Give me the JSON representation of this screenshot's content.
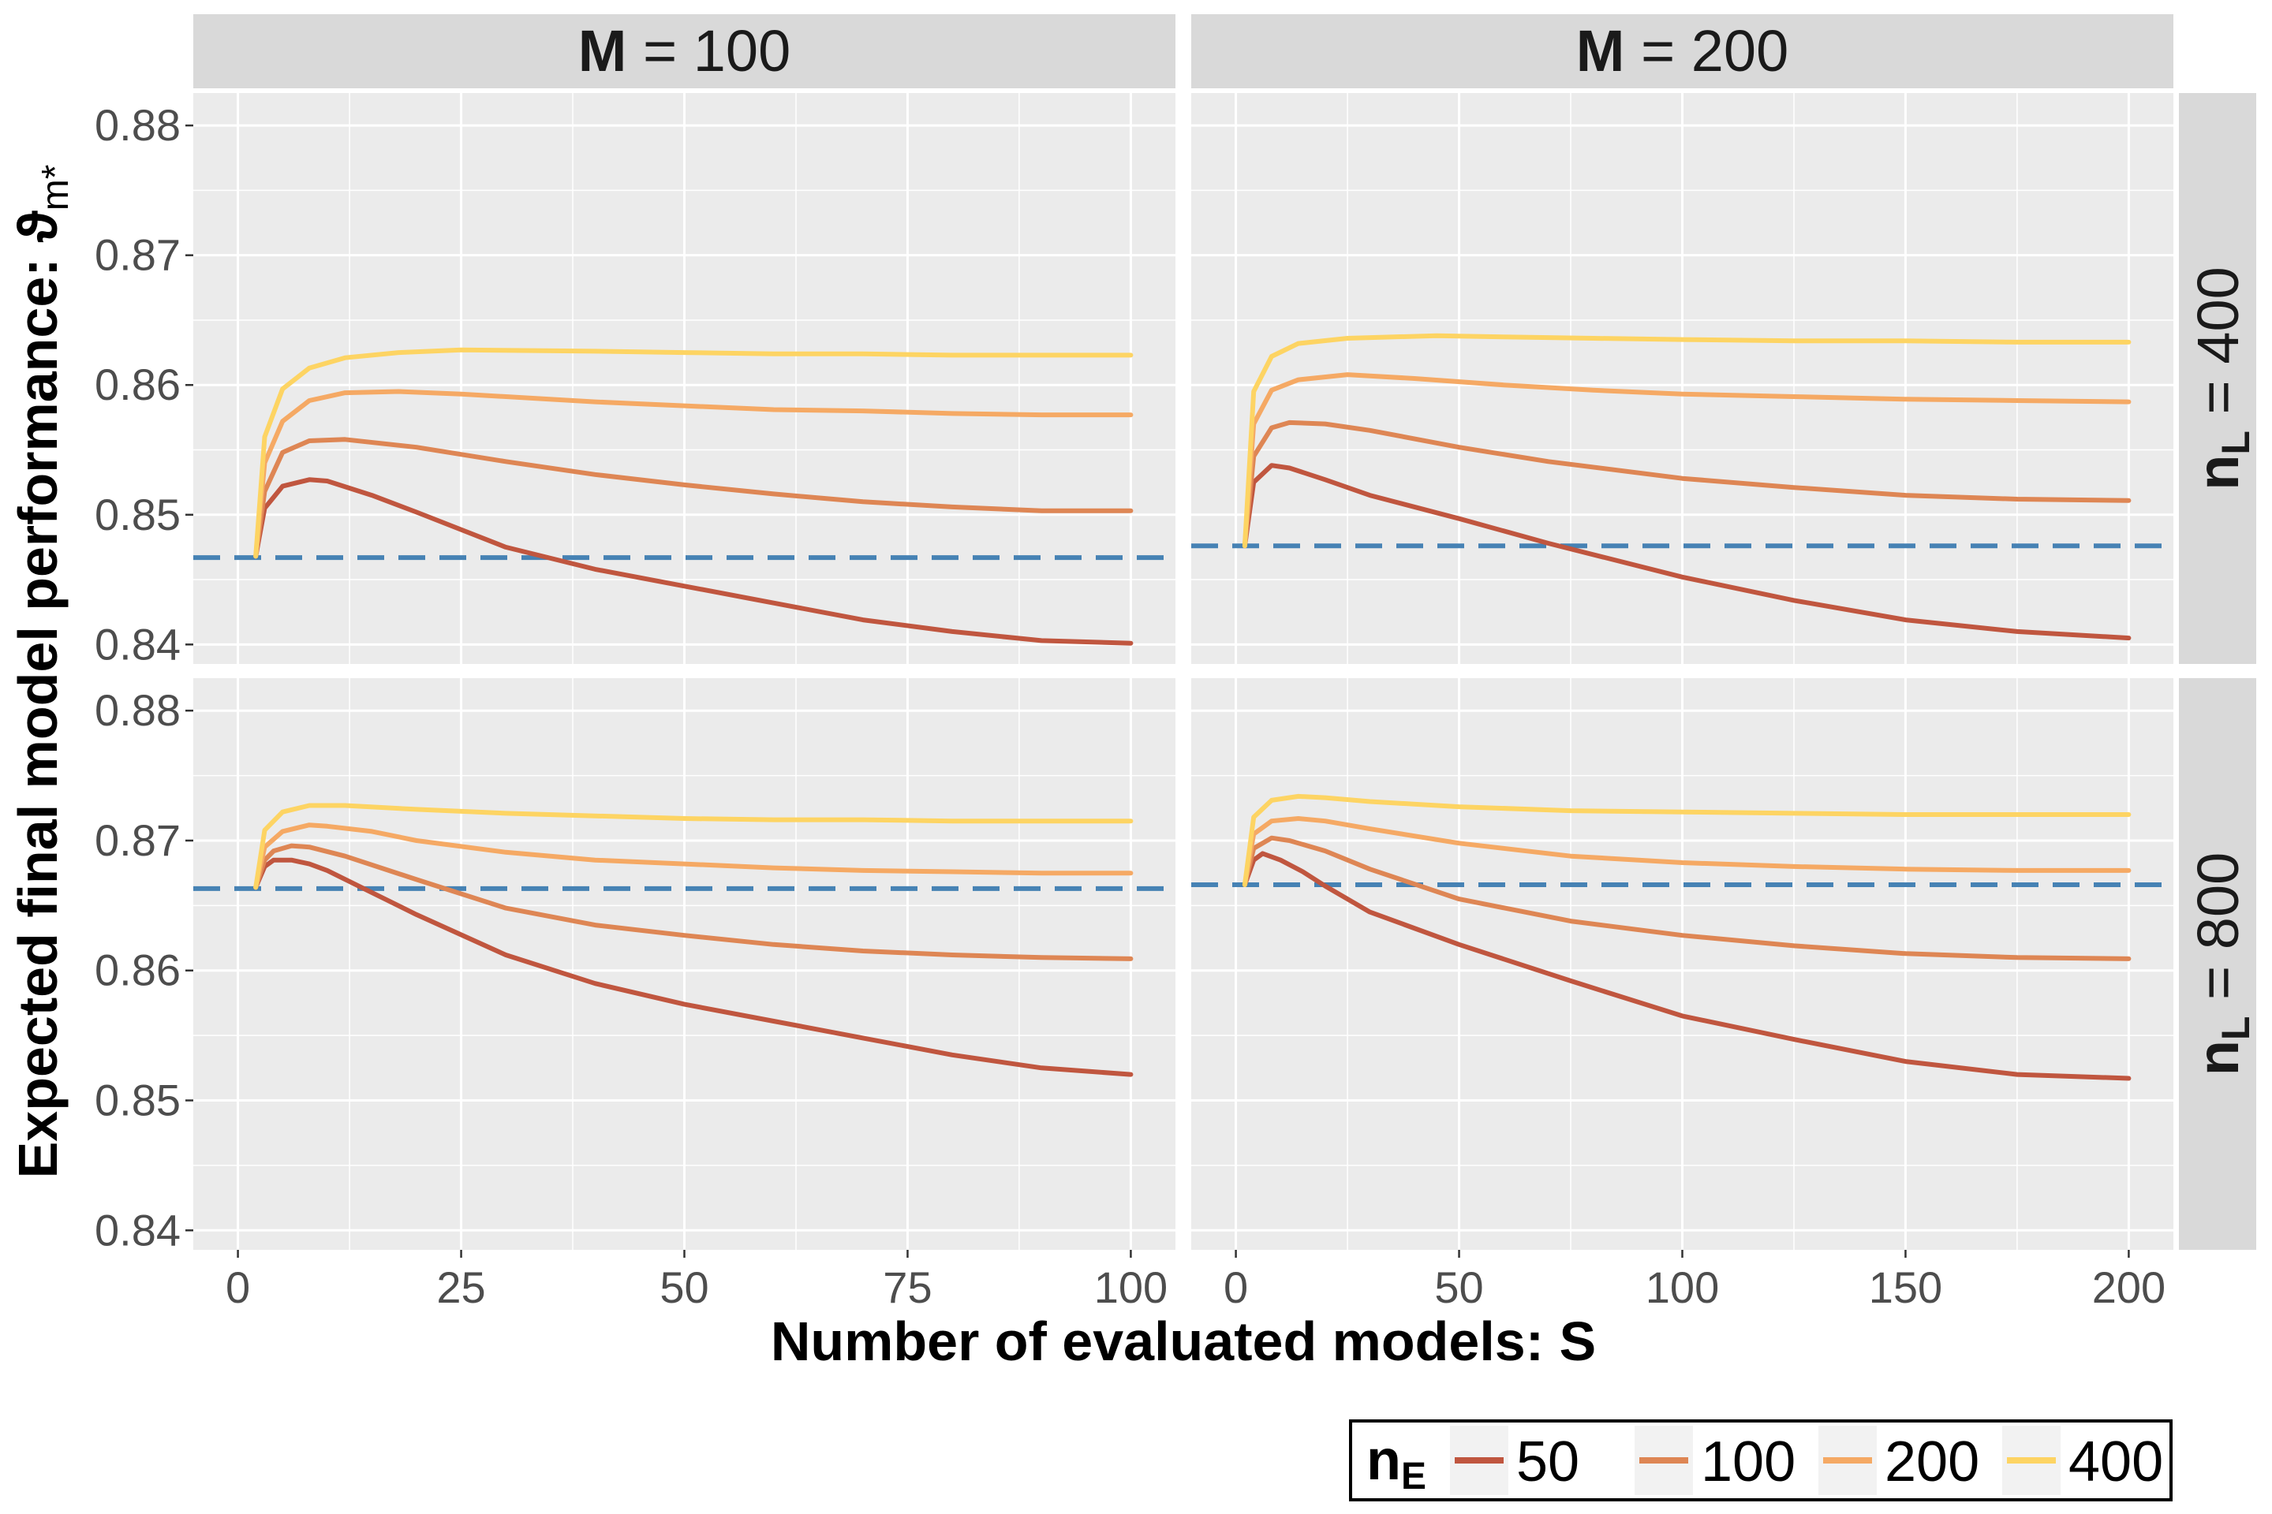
{
  "chart_data": {
    "type": "line",
    "xlabel": "Number of evaluated models: S",
    "ylabel": "Expected final model performance: ϑ",
    "ylabel_sub": "m*",
    "ylim": [
      0.8385,
      0.8825
    ],
    "yticks": [
      0.84,
      0.85,
      0.86,
      0.87,
      0.88
    ],
    "ytick_labels": [
      "0.84",
      "0.85",
      "0.86",
      "0.87",
      "0.88"
    ],
    "grid": true,
    "columns": [
      {
        "label_bold": "M",
        "label_rest": " = 100",
        "xlim": [
          -5,
          105
        ],
        "xticks": [
          0,
          25,
          50,
          75,
          100
        ],
        "xtick_labels": [
          "0",
          "25",
          "50",
          "75",
          "100"
        ]
      },
      {
        "label_bold": "M",
        "label_rest": " = 200",
        "xlim": [
          -10,
          210
        ],
        "xticks": [
          0,
          50,
          100,
          150,
          200
        ],
        "xtick_labels": [
          "0",
          "50",
          "100",
          "150",
          "200"
        ]
      }
    ],
    "rows": [
      {
        "label_bold": "n",
        "label_sub": "L",
        "label_rest": " = 400"
      },
      {
        "label_bold": "n",
        "label_sub": "L",
        "label_rest": " = 800"
      }
    ],
    "legend": {
      "title": "n",
      "title_sub": "E",
      "position": "bottom-right",
      "entries": [
        "50",
        "100",
        "200",
        "400"
      ]
    },
    "series_colors": [
      "#c0563f",
      "#de8654",
      "#f5a964",
      "#fdd463"
    ],
    "reference_color": "#4682b4",
    "panels": [
      {
        "col": 0,
        "row": 0,
        "reference": 0.8467,
        "series": [
          {
            "name": "50",
            "x": [
              2,
              3,
              5,
              8,
              10,
              15,
              20,
              30,
              40,
              50,
              60,
              70,
              80,
              90,
              100
            ],
            "y": [
              0.8468,
              0.8505,
              0.8522,
              0.8527,
              0.8526,
              0.8515,
              0.8502,
              0.8475,
              0.8458,
              0.8445,
              0.8432,
              0.8419,
              0.841,
              0.8403,
              0.8401
            ]
          },
          {
            "name": "100",
            "x": [
              2,
              3,
              5,
              8,
              12,
              20,
              30,
              40,
              50,
              60,
              70,
              80,
              90,
              100
            ],
            "y": [
              0.8468,
              0.8518,
              0.8548,
              0.8557,
              0.8558,
              0.8552,
              0.8541,
              0.8531,
              0.8523,
              0.8516,
              0.851,
              0.8506,
              0.8503,
              0.8503
            ]
          },
          {
            "name": "200",
            "x": [
              2,
              3,
              5,
              8,
              12,
              18,
              25,
              40,
              50,
              60,
              70,
              80,
              90,
              100
            ],
            "y": [
              0.8468,
              0.854,
              0.8572,
              0.8588,
              0.8594,
              0.8595,
              0.8593,
              0.8587,
              0.8584,
              0.8581,
              0.858,
              0.8578,
              0.8577,
              0.8577
            ]
          },
          {
            "name": "400",
            "x": [
              2,
              3,
              5,
              8,
              12,
              18,
              25,
              40,
              50,
              60,
              70,
              80,
              90,
              100
            ],
            "y": [
              0.8468,
              0.856,
              0.8597,
              0.8613,
              0.8621,
              0.8625,
              0.8627,
              0.8626,
              0.8625,
              0.8624,
              0.8624,
              0.8623,
              0.8623,
              0.8623
            ]
          }
        ]
      },
      {
        "col": 1,
        "row": 0,
        "reference": 0.8476,
        "series": [
          {
            "name": "50",
            "x": [
              2,
              4,
              8,
              12,
              20,
              30,
              50,
              70,
              100,
              125,
              150,
              175,
              200
            ],
            "y": [
              0.8476,
              0.8525,
              0.8538,
              0.8536,
              0.8527,
              0.8515,
              0.8497,
              0.8478,
              0.8452,
              0.8434,
              0.8419,
              0.841,
              0.8405
            ]
          },
          {
            "name": "100",
            "x": [
              2,
              4,
              8,
              12,
              20,
              30,
              50,
              70,
              100,
              125,
              150,
              175,
              200
            ],
            "y": [
              0.8476,
              0.8545,
              0.8567,
              0.8571,
              0.857,
              0.8565,
              0.8552,
              0.8541,
              0.8528,
              0.8521,
              0.8515,
              0.8512,
              0.8511
            ]
          },
          {
            "name": "200",
            "x": [
              2,
              4,
              8,
              14,
              25,
              40,
              60,
              80,
              100,
              125,
              150,
              175,
              200
            ],
            "y": [
              0.8476,
              0.857,
              0.8596,
              0.8604,
              0.8608,
              0.8605,
              0.86,
              0.8596,
              0.8593,
              0.8591,
              0.8589,
              0.8588,
              0.8587
            ]
          },
          {
            "name": "400",
            "x": [
              2,
              4,
              8,
              14,
              25,
              45,
              60,
              80,
              100,
              125,
              150,
              175,
              200
            ],
            "y": [
              0.8476,
              0.8595,
              0.8622,
              0.8632,
              0.8636,
              0.8638,
              0.8637,
              0.8636,
              0.8635,
              0.8634,
              0.8634,
              0.8633,
              0.8633
            ]
          }
        ]
      },
      {
        "col": 0,
        "row": 1,
        "reference": 0.8663,
        "series": [
          {
            "name": "50",
            "x": [
              2,
              3,
              4,
              6,
              8,
              10,
              15,
              20,
              30,
              40,
              50,
              60,
              70,
              80,
              90,
              100
            ],
            "y": [
              0.8664,
              0.868,
              0.8685,
              0.8685,
              0.8682,
              0.8677,
              0.866,
              0.8643,
              0.8612,
              0.859,
              0.8574,
              0.8561,
              0.8548,
              0.8535,
              0.8525,
              0.852
            ]
          },
          {
            "name": "100",
            "x": [
              2,
              3,
              4,
              6,
              8,
              12,
              20,
              30,
              40,
              50,
              60,
              70,
              80,
              90,
              100
            ],
            "y": [
              0.8664,
              0.8685,
              0.8692,
              0.8696,
              0.8695,
              0.8688,
              0.867,
              0.8648,
              0.8635,
              0.8627,
              0.862,
              0.8615,
              0.8612,
              0.861,
              0.8609
            ]
          },
          {
            "name": "200",
            "x": [
              2,
              3,
              5,
              8,
              10,
              15,
              20,
              30,
              40,
              50,
              60,
              70,
              80,
              90,
              100
            ],
            "y": [
              0.8664,
              0.8695,
              0.8707,
              0.8712,
              0.8711,
              0.8707,
              0.87,
              0.8691,
              0.8685,
              0.8682,
              0.8679,
              0.8677,
              0.8676,
              0.8675,
              0.8675
            ]
          },
          {
            "name": "400",
            "x": [
              2,
              3,
              5,
              8,
              12,
              20,
              30,
              40,
              50,
              60,
              70,
              80,
              90,
              100
            ],
            "y": [
              0.8664,
              0.8708,
              0.8722,
              0.8727,
              0.8727,
              0.8724,
              0.8721,
              0.8719,
              0.8717,
              0.8716,
              0.8716,
              0.8715,
              0.8715,
              0.8715
            ]
          }
        ]
      },
      {
        "col": 1,
        "row": 1,
        "reference": 0.8666,
        "series": [
          {
            "name": "50",
            "x": [
              2,
              4,
              6,
              10,
              15,
              20,
              30,
              50,
              75,
              100,
              125,
              150,
              175,
              200
            ],
            "y": [
              0.8666,
              0.8685,
              0.869,
              0.8685,
              0.8676,
              0.8665,
              0.8645,
              0.862,
              0.8592,
              0.8565,
              0.8547,
              0.853,
              0.852,
              0.8517
            ]
          },
          {
            "name": "100",
            "x": [
              2,
              4,
              8,
              12,
              20,
              30,
              50,
              75,
              100,
              125,
              150,
              175,
              200
            ],
            "y": [
              0.8666,
              0.8694,
              0.8702,
              0.87,
              0.8692,
              0.8678,
              0.8655,
              0.8638,
              0.8627,
              0.8619,
              0.8613,
              0.861,
              0.8609
            ]
          },
          {
            "name": "200",
            "x": [
              2,
              4,
              8,
              14,
              20,
              30,
              50,
              75,
              100,
              125,
              150,
              175,
              200
            ],
            "y": [
              0.8666,
              0.8705,
              0.8715,
              0.8717,
              0.8715,
              0.8709,
              0.8698,
              0.8688,
              0.8683,
              0.868,
              0.8678,
              0.8677,
              0.8677
            ]
          },
          {
            "name": "400",
            "x": [
              2,
              4,
              8,
              14,
              20,
              30,
              50,
              75,
              100,
              125,
              150,
              175,
              200
            ],
            "y": [
              0.8666,
              0.8718,
              0.8731,
              0.8734,
              0.8733,
              0.873,
              0.8726,
              0.8723,
              0.8722,
              0.8721,
              0.872,
              0.872,
              0.872
            ]
          }
        ]
      }
    ]
  }
}
